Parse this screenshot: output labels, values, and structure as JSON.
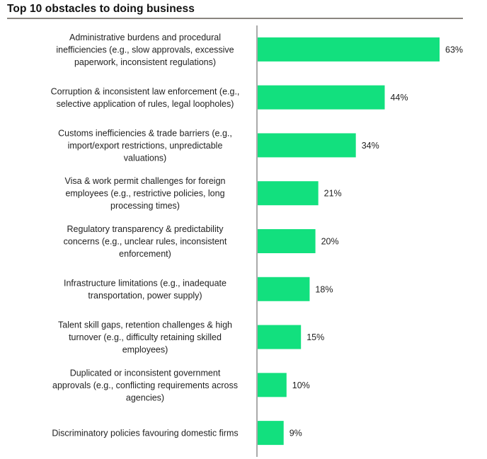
{
  "chart_data": {
    "type": "bar",
    "orientation": "horizontal",
    "title": "Top 10 obstacles to doing business",
    "categories": [
      "Administrative burdens and procedural inefficiencies (e.g., slow approvals, excessive paperwork, inconsistent regulations)",
      "Corruption & inconsistent law enforcement (e.g., selective application of rules, legal loopholes)",
      "Customs inefficiencies & trade barriers (e.g., import/export restrictions, unpredictable valuations)",
      "Visa & work permit challenges for foreign employees (e.g., restrictive policies, long processing times)",
      "Regulatory transparency & predictability concerns (e.g., unclear rules, inconsistent enforcement)",
      "Infrastructure limitations (e.g., inadequate transportation, power supply)",
      "Talent skill gaps, retention challenges & high turnover (e.g., difficulty retaining skilled employees)",
      "Duplicated or inconsistent government approvals (e.g., conflicting requirements across agencies)",
      "Discriminatory policies favouring domestic firms"
    ],
    "category_lines": [
      [
        "Administrative burdens and procedural",
        "inefficiencies (e.g., slow approvals, excessive",
        "paperwork, inconsistent regulations)"
      ],
      [
        "Corruption & inconsistent law enforcement (e.g.,",
        "selective application of rules, legal loopholes)"
      ],
      [
        "Customs inefficiencies & trade barriers (e.g.,",
        "import/export restrictions, unpredictable",
        "valuations)"
      ],
      [
        "Visa & work permit challenges for foreign",
        "employees (e.g., restrictive policies, long",
        "processing times)"
      ],
      [
        "Regulatory transparency & predictability",
        "concerns (e.g., unclear rules, inconsistent",
        "enforcement)"
      ],
      [
        "Infrastructure limitations (e.g., inadequate",
        "transportation, power supply)"
      ],
      [
        "Talent skill gaps, retention challenges & high",
        "turnover (e.g., difficulty retaining skilled",
        "employees)"
      ],
      [
        "Duplicated or inconsistent government",
        "approvals (e.g., conflicting requirements across",
        "agencies)"
      ],
      [
        "Discriminatory policies favouring domestic firms"
      ]
    ],
    "values": [
      63,
      44,
      34,
      21,
      20,
      18,
      15,
      10,
      9
    ],
    "value_labels": [
      "63%",
      "44%",
      "34%",
      "21%",
      "20%",
      "18%",
      "15%",
      "10%",
      "9%"
    ],
    "unit": "%",
    "xlim": [
      0,
      63
    ],
    "grid": false,
    "legend": "none",
    "colors": {
      "bar": "#12e07e",
      "axis": "#555555",
      "rule": "#8a8580"
    }
  }
}
